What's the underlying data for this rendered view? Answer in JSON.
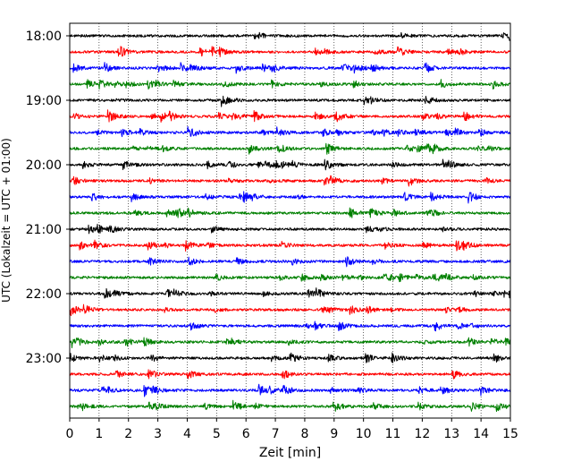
{
  "chart_data": {
    "type": "line",
    "title": "",
    "xlabel": "Zeit  [min]",
    "ylabel": "UTC (Lokalzeit = UTC + 01:00)",
    "xlim": [
      0,
      15
    ],
    "x_ticks": [
      0,
      1,
      2,
      3,
      4,
      5,
      6,
      7,
      8,
      9,
      10,
      11,
      12,
      13,
      14,
      15
    ],
    "y_tick_labels": [
      "18:00",
      "19:00",
      "20:00",
      "21:00",
      "22:00",
      "23:00"
    ],
    "trace_interval_min": 15,
    "start_time": "18:00",
    "end_time": "23:45",
    "grid": "vertical dotted",
    "trace_colors": [
      "#000000",
      "#ff0000",
      "#0000ff",
      "#008000"
    ],
    "series": [
      {
        "start": "18:00",
        "color": "#000000"
      },
      {
        "start": "18:15",
        "color": "#ff0000"
      },
      {
        "start": "18:30",
        "color": "#0000ff"
      },
      {
        "start": "18:45",
        "color": "#008000"
      },
      {
        "start": "19:00",
        "color": "#000000"
      },
      {
        "start": "19:15",
        "color": "#ff0000"
      },
      {
        "start": "19:30",
        "color": "#0000ff"
      },
      {
        "start": "19:45",
        "color": "#008000"
      },
      {
        "start": "20:00",
        "color": "#000000"
      },
      {
        "start": "20:15",
        "color": "#ff0000"
      },
      {
        "start": "20:30",
        "color": "#0000ff"
      },
      {
        "start": "20:45",
        "color": "#008000"
      },
      {
        "start": "21:00",
        "color": "#000000"
      },
      {
        "start": "21:15",
        "color": "#ff0000"
      },
      {
        "start": "21:30",
        "color": "#0000ff"
      },
      {
        "start": "21:45",
        "color": "#008000"
      },
      {
        "start": "22:00",
        "color": "#000000"
      },
      {
        "start": "22:15",
        "color": "#ff0000"
      },
      {
        "start": "22:30",
        "color": "#0000ff"
      },
      {
        "start": "22:45",
        "color": "#008000"
      },
      {
        "start": "23:00",
        "color": "#000000"
      },
      {
        "start": "23:15",
        "color": "#ff0000"
      },
      {
        "start": "23:30",
        "color": "#0000ff"
      },
      {
        "start": "23:45",
        "color": "#008000"
      }
    ]
  }
}
